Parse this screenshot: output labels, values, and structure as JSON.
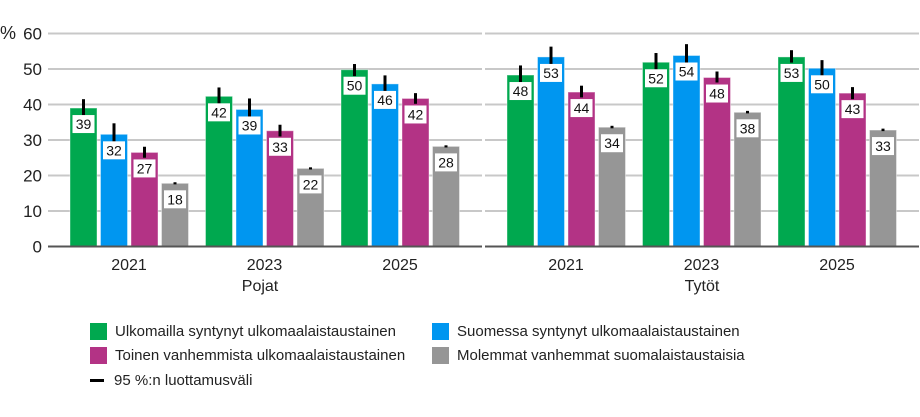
{
  "chart_data": {
    "type": "bar",
    "ylabel": "%",
    "ylim": [
      0,
      60
    ],
    "yticks": [
      0,
      10,
      20,
      30,
      40,
      50,
      60
    ],
    "grid": true,
    "legend_position": "bottom",
    "categories": [
      "2021",
      "2023",
      "2025"
    ],
    "panels": [
      {
        "label": "Pojat",
        "series": [
          {
            "name": "Ulkomailla syntynyt ulkomaalaistaustainen",
            "color": "#00a84f",
            "values": [
              39.0,
              42.3,
              49.8
            ],
            "labels": [
              "39",
              "42",
              "50"
            ],
            "ci": [
              [
                36.5,
                41.5
              ],
              [
                40.0,
                44.8
              ],
              [
                48.0,
                51.4
              ]
            ]
          },
          {
            "name": "Suomessa syntynyt ulkomaalaistaustainen",
            "color": "#0096f0",
            "values": [
              31.6,
              38.6,
              45.8
            ],
            "labels": [
              "32",
              "39",
              "46"
            ],
            "ci": [
              [
                28.8,
                34.7
              ],
              [
                35.5,
                41.7
              ],
              [
                43.4,
                48.2
              ]
            ]
          },
          {
            "name": "Toinen vanhemmista ulkomaalaistaustainen",
            "color": "#b33385",
            "values": [
              26.5,
              32.6,
              41.7
            ],
            "labels": [
              "27",
              "33",
              "42"
            ],
            "ci": [
              [
                25.0,
                28.1
              ],
              [
                31.0,
                34.3
              ],
              [
                40.2,
                43.2
              ]
            ]
          },
          {
            "name": "Molemmat vanhemmat suomalaistaustaisia",
            "color": "#969696",
            "values": [
              17.8,
              22.0,
              28.2
            ],
            "labels": [
              "18",
              "22",
              "28"
            ],
            "ci": [
              [
                17.5,
                18.1
              ],
              [
                21.7,
                22.3
              ],
              [
                27.9,
                28.5
              ]
            ]
          }
        ]
      },
      {
        "label": "Tytöt",
        "series": [
          {
            "name": "Ulkomailla syntynyt ulkomaalaistaustainen",
            "color": "#00a84f",
            "values": [
              48.3,
              51.9,
              53.4
            ],
            "labels": [
              "48",
              "52",
              "53"
            ],
            "ci": [
              [
                45.7,
                51.0
              ],
              [
                49.5,
                54.5
              ],
              [
                51.8,
                55.3
              ]
            ]
          },
          {
            "name": "Suomessa syntynyt ulkomaalaistaustainen",
            "color": "#0096f0",
            "values": [
              53.4,
              53.8,
              50.2
            ],
            "labels": [
              "53",
              "54",
              "50"
            ],
            "ci": [
              [
                50.5,
                56.3
              ],
              [
                50.9,
                57.0
              ],
              [
                48.0,
                52.5
              ]
            ]
          },
          {
            "name": "Toinen vanhemmista ulkomaalaistaustainen",
            "color": "#b33385",
            "values": [
              43.5,
              47.6,
              43.2
            ],
            "labels": [
              "44",
              "48",
              "43"
            ],
            "ci": [
              [
                42.0,
                45.3
              ],
              [
                46.2,
                49.3
              ],
              [
                41.5,
                44.9
              ]
            ]
          },
          {
            "name": "Molemmat vanhemmat suomalaistaustaisia",
            "color": "#969696",
            "values": [
              33.6,
              37.8,
              32.8
            ],
            "labels": [
              "34",
              "38",
              "33"
            ],
            "ci": [
              [
                33.3,
                34.0
              ],
              [
                37.5,
                38.2
              ],
              [
                32.5,
                33.2
              ]
            ]
          }
        ]
      }
    ],
    "legend": [
      {
        "label": "Ulkomailla syntynyt ulkomaalaistaustainen",
        "color": "#00a84f"
      },
      {
        "label": "Suomessa syntynyt ulkomaalaistaustainen",
        "color": "#0096f0"
      },
      {
        "label": "Toinen vanhemmista ulkomaalaistaustainen",
        "color": "#b33385"
      },
      {
        "label": "Molemmat vanhemmat suomalaistaustaisia",
        "color": "#969696"
      }
    ],
    "ci_legend": "95 %:n luottamusväli"
  }
}
